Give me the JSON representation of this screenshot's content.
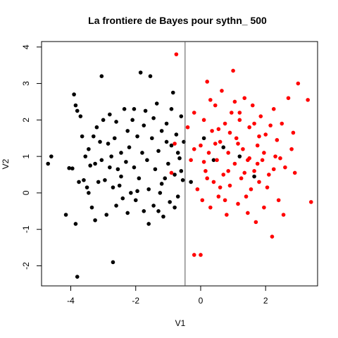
{
  "chart_data": {
    "type": "scatter",
    "title": "La frontiere de Bayes pour sythn_ 500",
    "xlabel": "V1",
    "ylabel": "V2",
    "xlim": [
      -4.9,
      3.6
    ],
    "ylim": [
      -2.55,
      4.15
    ],
    "x_ticks": [
      -4,
      -2,
      0,
      2
    ],
    "y_ticks": [
      -2,
      -1,
      0,
      1,
      2,
      3,
      4
    ],
    "boundary_x": -0.48,
    "colors": {
      "class_a": "#000000",
      "class_b": "#ff0000",
      "boundary": "#555555"
    },
    "series": [
      {
        "color": "#000000",
        "points": [
          [
            -4.7,
            0.8
          ],
          [
            -4.6,
            1.0
          ],
          [
            -4.15,
            -0.6
          ],
          [
            -4.05,
            0.68
          ],
          [
            -3.95,
            0.67
          ],
          [
            -3.9,
            2.7
          ],
          [
            -3.85,
            2.4
          ],
          [
            -3.8,
            2.25
          ],
          [
            -3.85,
            -0.85
          ],
          [
            -3.8,
            -2.3
          ],
          [
            -3.75,
            0.3
          ],
          [
            -3.65,
            1.55
          ],
          [
            -3.6,
            0.35
          ],
          [
            -3.55,
            1.0
          ],
          [
            -3.5,
            0.15
          ],
          [
            -3.45,
            1.2
          ],
          [
            -3.4,
            0.75
          ],
          [
            -3.35,
            -0.4
          ],
          [
            -3.3,
            1.55
          ],
          [
            -3.25,
            0.8
          ],
          [
            -3.2,
            1.8
          ],
          [
            -3.15,
            0.3
          ],
          [
            -3.1,
            1.4
          ],
          [
            -3.05,
            0.9
          ],
          [
            -3.0,
            2.0
          ],
          [
            -2.95,
            0.35
          ],
          [
            -2.9,
            -0.6
          ],
          [
            -2.85,
            1.35
          ],
          [
            -2.8,
            0.7
          ],
          [
            -2.75,
            1.0
          ],
          [
            -2.7,
            -1.9
          ],
          [
            -2.7,
            0.15
          ],
          [
            -2.65,
            1.5
          ],
          [
            -2.6,
            -0.35
          ],
          [
            -2.55,
            0.65
          ],
          [
            -2.5,
            0.2
          ],
          [
            -2.45,
            1.1
          ],
          [
            -2.4,
            -0.15
          ],
          [
            -2.35,
            2.3
          ],
          [
            -2.3,
            0.85
          ],
          [
            -2.25,
            -0.55
          ],
          [
            -2.2,
            1.25
          ],
          [
            -2.15,
            0.0
          ],
          [
            -2.1,
            2.0
          ],
          [
            -2.05,
            0.7
          ],
          [
            -2.0,
            -0.2
          ],
          [
            -1.95,
            1.55
          ],
          [
            -1.9,
            0.4
          ],
          [
            -1.85,
            3.3
          ],
          [
            -1.8,
            1.1
          ],
          [
            -1.75,
            -0.5
          ],
          [
            -1.7,
            2.25
          ],
          [
            -1.65,
            0.9
          ],
          [
            -1.6,
            0.1
          ],
          [
            -1.55,
            3.2
          ],
          [
            -1.5,
            1.5
          ],
          [
            -1.45,
            -0.35
          ],
          [
            -1.4,
            0.65
          ],
          [
            -1.35,
            2.45
          ],
          [
            -1.3,
            1.15
          ],
          [
            -1.25,
            0.0
          ],
          [
            -1.2,
            1.7
          ],
          [
            -1.15,
            -0.65
          ],
          [
            -1.1,
            0.4
          ],
          [
            -1.05,
            1.9
          ],
          [
            -1.0,
            0.8
          ],
          [
            -0.95,
            -0.25
          ],
          [
            -0.9,
            1.3
          ],
          [
            -0.85,
            2.75
          ],
          [
            -0.8,
            0.5
          ],
          [
            -0.75,
            1.6
          ],
          [
            -0.7,
            -0.1
          ],
          [
            -0.65,
            0.95
          ],
          [
            -0.6,
            2.1
          ],
          [
            -0.55,
            0.35
          ],
          [
            -0.52,
            1.4
          ],
          [
            -3.7,
            2.1
          ],
          [
            -3.45,
            0.0
          ],
          [
            -3.25,
            -0.75
          ],
          [
            -3.05,
            3.2
          ],
          [
            -2.8,
            2.15
          ],
          [
            -2.6,
            1.95
          ],
          [
            -2.45,
            0.45
          ],
          [
            -2.25,
            1.7
          ],
          [
            -2.05,
            2.3
          ],
          [
            -1.95,
            0.05
          ],
          [
            -1.75,
            1.85
          ],
          [
            -1.6,
            -0.85
          ],
          [
            -1.45,
            2.05
          ],
          [
            -1.3,
            -0.5
          ],
          [
            -1.2,
            0.25
          ],
          [
            -1.05,
            1.4
          ],
          [
            -0.9,
            2.3
          ],
          [
            -0.8,
            -0.4
          ],
          [
            -0.7,
            1.1
          ],
          [
            -0.6,
            0.6
          ],
          [
            -0.3,
            0.3
          ],
          [
            0.1,
            1.5
          ],
          [
            0.4,
            0.9
          ],
          [
            0.7,
            1.25
          ],
          [
            1.2,
            1.0
          ],
          [
            1.65,
            0.45
          ]
        ]
      },
      {
        "color": "#ff0000",
        "points": [
          [
            -0.75,
            3.8
          ],
          [
            -0.2,
            -1.7
          ],
          [
            0.0,
            -1.7
          ],
          [
            -0.4,
            1.8
          ],
          [
            -0.3,
            0.9
          ],
          [
            -0.2,
            2.2
          ],
          [
            -0.1,
            0.1
          ],
          [
            0.0,
            1.3
          ],
          [
            0.05,
            -0.2
          ],
          [
            0.1,
            2.0
          ],
          [
            0.15,
            0.6
          ],
          [
            0.2,
            3.05
          ],
          [
            0.25,
            1.1
          ],
          [
            0.3,
            -0.4
          ],
          [
            0.35,
            1.7
          ],
          [
            0.4,
            0.3
          ],
          [
            0.45,
            2.4
          ],
          [
            0.5,
            0.9
          ],
          [
            0.55,
            -0.1
          ],
          [
            0.6,
            1.4
          ],
          [
            0.65,
            2.8
          ],
          [
            0.7,
            0.5
          ],
          [
            0.75,
            1.9
          ],
          [
            0.8,
            -0.6
          ],
          [
            0.85,
            1.1
          ],
          [
            0.9,
            0.2
          ],
          [
            0.95,
            2.2
          ],
          [
            1.0,
            3.35
          ],
          [
            1.05,
            0.8
          ],
          [
            1.1,
            1.5
          ],
          [
            1.15,
            -0.3
          ],
          [
            1.2,
            2.0
          ],
          [
            1.25,
            0.4
          ],
          [
            1.3,
            1.2
          ],
          [
            1.35,
            2.6
          ],
          [
            1.4,
            -0.1
          ],
          [
            1.45,
            0.9
          ],
          [
            1.5,
            1.8
          ],
          [
            1.55,
            0.1
          ],
          [
            1.6,
            2.4
          ],
          [
            1.65,
            0.6
          ],
          [
            1.7,
            -0.8
          ],
          [
            1.75,
            1.3
          ],
          [
            1.8,
            0.3
          ],
          [
            1.85,
            2.1
          ],
          [
            1.9,
            0.9
          ],
          [
            1.95,
            -0.4
          ],
          [
            2.0,
            1.6
          ],
          [
            2.1,
            0.5
          ],
          [
            2.2,
            -1.2
          ],
          [
            2.25,
            2.3
          ],
          [
            2.3,
            1.0
          ],
          [
            2.4,
            -0.2
          ],
          [
            2.5,
            1.9
          ],
          [
            2.6,
            0.7
          ],
          [
            2.7,
            2.6
          ],
          [
            2.8,
            1.2
          ],
          [
            2.85,
            1.65
          ],
          [
            2.9,
            0.55
          ],
          [
            3.0,
            3.0
          ],
          [
            3.3,
            2.55
          ],
          [
            3.4,
            -0.25
          ],
          [
            -0.9,
            0.55
          ],
          [
            -0.8,
            1.35
          ],
          [
            -0.2,
            1.2
          ],
          [
            0.1,
            0.85
          ],
          [
            0.3,
            2.55
          ],
          [
            0.6,
            0.15
          ],
          [
            0.9,
            1.65
          ],
          [
            1.2,
            2.2
          ],
          [
            1.5,
            0.95
          ],
          [
            1.8,
            1.55
          ],
          [
            2.05,
            0.15
          ],
          [
            2.35,
            1.45
          ],
          [
            2.55,
            -0.6
          ],
          [
            0.45,
            1.35
          ],
          [
            0.75,
            -0.2
          ],
          [
            1.05,
            2.5
          ],
          [
            1.35,
            0.55
          ],
          [
            1.65,
            1.9
          ],
          [
            1.95,
            1.1
          ],
          [
            2.25,
            0.65
          ],
          [
            0.2,
            0.4
          ],
          [
            0.55,
            1.75
          ],
          [
            0.85,
            0.6
          ],
          [
            1.15,
            1.35
          ],
          [
            1.45,
            -0.55
          ],
          [
            1.75,
            0.8
          ],
          [
            2.15,
            1.85
          ],
          [
            2.45,
            0.95
          ]
        ]
      }
    ]
  }
}
